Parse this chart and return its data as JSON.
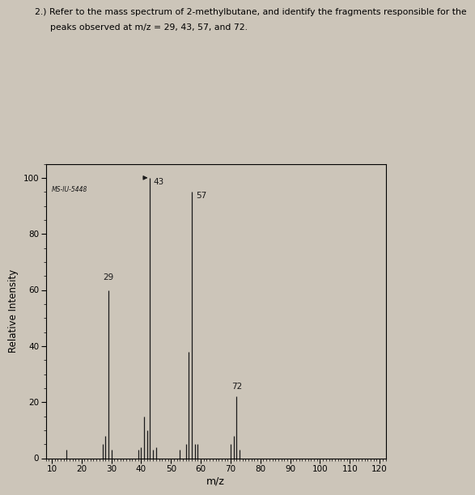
{
  "title_line1": "2.) Refer to the mass spectrum of 2-methylbutane, and identify the fragments responsible for the",
  "title_line2": "peaks observed at m/z = 29, 43, 57, and 72.",
  "xlabel": "m/z",
  "ylabel": "Relative Intensity",
  "xlim": [
    8,
    122
  ],
  "ylim": [
    0,
    105
  ],
  "xticks": [
    10,
    20,
    30,
    40,
    50,
    60,
    70,
    80,
    90,
    100,
    110,
    120
  ],
  "yticks": [
    0,
    20,
    40,
    60,
    80,
    100
  ],
  "label_text": "MS-IU-5448",
  "background_color": "#ccc5b9",
  "plot_bg_color": "#ccc5b9",
  "bar_color": "#1a1a1a",
  "annotation_color": "#1a1a1a",
  "peaks": [
    {
      "mz": 15,
      "intensity": 3
    },
    {
      "mz": 27,
      "intensity": 5
    },
    {
      "mz": 28,
      "intensity": 8
    },
    {
      "mz": 29,
      "intensity": 60
    },
    {
      "mz": 30,
      "intensity": 3
    },
    {
      "mz": 39,
      "intensity": 3
    },
    {
      "mz": 40,
      "intensity": 4
    },
    {
      "mz": 41,
      "intensity": 15
    },
    {
      "mz": 42,
      "intensity": 10
    },
    {
      "mz": 43,
      "intensity": 100
    },
    {
      "mz": 44,
      "intensity": 3
    },
    {
      "mz": 45,
      "intensity": 4
    },
    {
      "mz": 53,
      "intensity": 3
    },
    {
      "mz": 55,
      "intensity": 5
    },
    {
      "mz": 56,
      "intensity": 38
    },
    {
      "mz": 57,
      "intensity": 95
    },
    {
      "mz": 58,
      "intensity": 5
    },
    {
      "mz": 59,
      "intensity": 5
    },
    {
      "mz": 70,
      "intensity": 5
    },
    {
      "mz": 71,
      "intensity": 8
    },
    {
      "mz": 72,
      "intensity": 22
    },
    {
      "mz": 73,
      "intensity": 3
    }
  ]
}
